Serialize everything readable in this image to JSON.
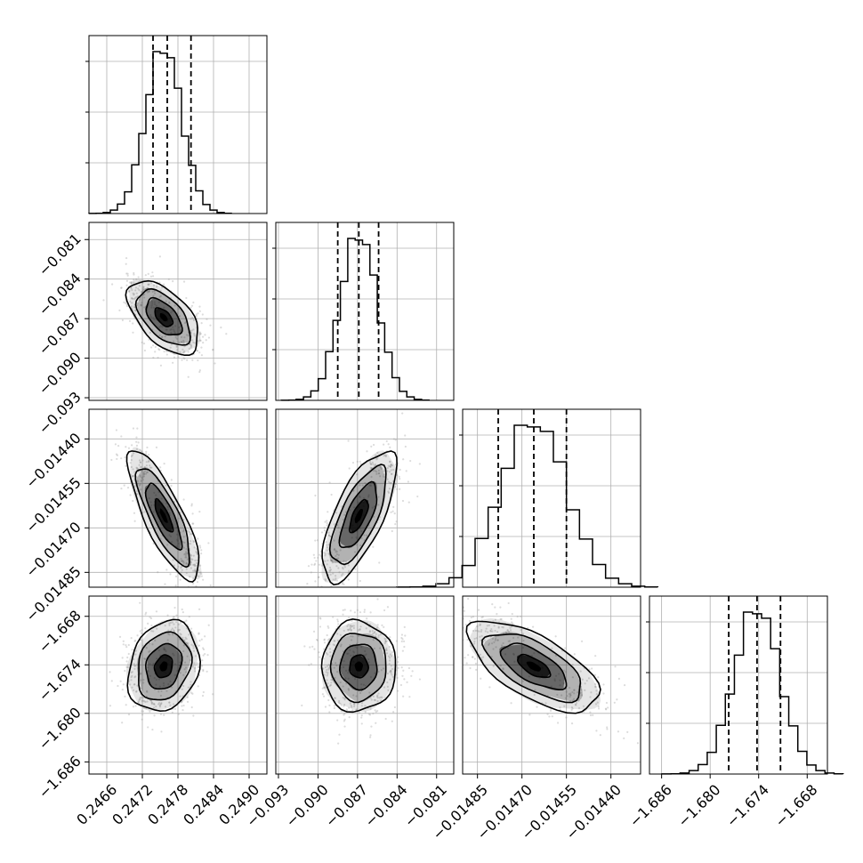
{
  "chart_data": {
    "type": "corner",
    "variables": [
      {
        "range": [
          0.2463,
          0.2493
        ],
        "ticks": [
          0.2466,
          0.2472,
          0.2478,
          0.2484,
          0.249
        ],
        "tick_labels": [
          "0.2466",
          "0.2472",
          "0.2478",
          "0.2484",
          "0.2490"
        ],
        "quantiles": [
          0.24738,
          0.24762,
          0.24802
        ],
        "peak": 0.24756,
        "sigma": 0.0003,
        "corr": 0
      },
      {
        "range": [
          -0.0932,
          -0.0797
        ],
        "ticks": [
          -0.093,
          -0.09,
          -0.087,
          -0.084,
          -0.081
        ],
        "tick_labels": [
          "−0.093",
          "−0.090",
          "−0.087",
          "−0.084",
          "−0.081"
        ],
        "quantiles": [
          -0.0885,
          -0.0869,
          -0.0854
        ],
        "peak": -0.0869,
        "sigma": 0.0014
      },
      {
        "range": [
          -0.0149,
          -0.0143
        ],
        "ticks": [
          -0.01485,
          -0.0147,
          -0.01455,
          -0.0144
        ],
        "tick_labels": [
          "−0.01485",
          "−0.01470",
          "−0.01455",
          "−0.01440"
        ],
        "quantiles": [
          -0.01478,
          -0.01466,
          -0.01455
        ],
        "peak": -0.01466,
        "sigma": 0.00011
      },
      {
        "range": [
          -1.6875,
          -1.6655
        ],
        "ticks": [
          -1.686,
          -1.68,
          -1.674,
          -1.668
        ],
        "tick_labels": [
          "−1.686",
          "−1.680",
          "−1.674",
          "−1.668"
        ],
        "quantiles": [
          -1.6777,
          -1.6742,
          -1.6713
        ],
        "peak": -1.6742,
        "sigma": 0.0028
      }
    ],
    "correlations": [
      [
        1.0,
        -0.55,
        -0.8,
        0.2
      ],
      [
        -0.55,
        1.0,
        0.7,
        0.0
      ],
      [
        -0.8,
        0.7,
        1.0,
        -0.65
      ],
      [
        0.2,
        0.0,
        -0.65,
        1.0
      ]
    ],
    "contour_levels": [
      0.5,
      1.0,
      1.5,
      2.0
    ],
    "grid": true,
    "colors": {
      "line": "#000000",
      "grid": "#b0b0b0",
      "points": "#9a9a9a",
      "density": "#000000"
    }
  }
}
